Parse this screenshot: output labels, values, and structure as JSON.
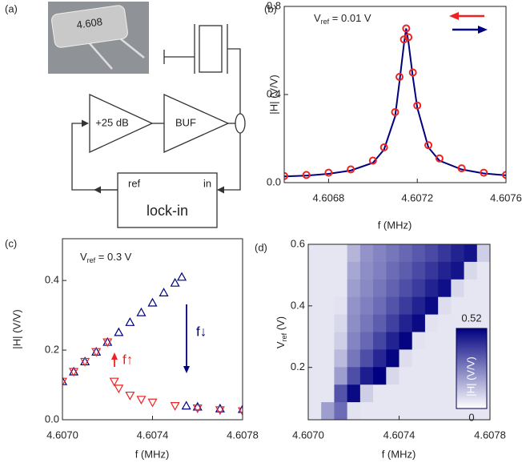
{
  "diagram": {
    "label": "(a)",
    "photo_text": "4.608",
    "amp_label": "+25 dB",
    "buffer_label": "BUF",
    "ref_label": "ref",
    "in_label": "in",
    "lockin_label": "lock-in"
  },
  "chart_data": [
    {
      "type": "line",
      "label": "(b)",
      "xlabel": "f (MHz)",
      "ylabel": "|H| (V/V)",
      "annotation": {
        "text": "V",
        "sub": "ref",
        "rest": " = 0.01 V"
      },
      "xlim": [
        4.6066,
        4.6076
      ],
      "xticks": [
        4.6068,
        4.6072,
        4.6076
      ],
      "ylim": [
        0,
        0.8
      ],
      "yticks": [
        {
          "value": 0,
          "label": "0.0"
        },
        0.4,
        0.8
      ],
      "x": [
        4.6066,
        4.6067,
        4.6068,
        4.6069,
        4.607,
        4.60705,
        4.6071,
        4.60712,
        4.60714,
        4.60715,
        4.60716,
        4.60718,
        4.6072,
        4.60725,
        4.6073,
        4.6074,
        4.6075,
        4.6076
      ],
      "series": [
        {
          "color": "#00007f",
          "style": "line",
          "legend_arrow": "right",
          "values": [
            0.028,
            0.032,
            0.04,
            0.055,
            0.09,
            0.15,
            0.3,
            0.46,
            0.63,
            0.7,
            0.64,
            0.48,
            0.34,
            0.16,
            0.1,
            0.06,
            0.042,
            0.033
          ]
        },
        {
          "color": "#ee2222",
          "style": "circle",
          "legend_arrow": "left",
          "values": [
            0.03,
            0.035,
            0.045,
            0.06,
            0.1,
            0.16,
            0.32,
            0.48,
            0.65,
            0.7,
            0.66,
            0.5,
            0.35,
            0.17,
            0.11,
            0.065,
            0.045,
            0.035
          ]
        }
      ]
    },
    {
      "type": "scatter",
      "label": "(c)",
      "xlabel": "f (MHz)",
      "ylabel": "|H| (V/V)",
      "annotation": {
        "text": "V",
        "sub": "ref",
        "rest": " = 0.3 V"
      },
      "sweep_labels": [
        {
          "text": "f↑",
          "color": "#ee2222"
        },
        {
          "text": "f↓",
          "color": "#00007f"
        }
      ],
      "xlim": [
        4.607,
        4.6078
      ],
      "xticks": [
        {
          "value": 4.607,
          "label": "4.6070"
        },
        4.6074,
        4.6078
      ],
      "ylim": [
        0,
        0.52
      ],
      "yticks": [
        {
          "value": 0,
          "label": "0.0"
        },
        0.2,
        0.4
      ],
      "series": [
        {
          "color": "#00007f",
          "style": "triangle-up",
          "x": [
            4.607,
            4.60705,
            4.6071,
            4.60715,
            4.6072,
            4.60725,
            4.6073,
            4.60735,
            4.6074,
            4.60745,
            4.6075,
            4.60753,
            4.60755,
            4.6076,
            4.6077,
            4.6078
          ],
          "values": [
            0.11,
            0.138,
            0.167,
            0.195,
            0.223,
            0.251,
            0.28,
            0.308,
            0.336,
            0.365,
            0.393,
            0.41,
            0.04,
            0.037,
            0.032,
            0.03
          ]
        },
        {
          "color": "#ee2222",
          "style": "triangle-down",
          "x": [
            4.607,
            4.60705,
            4.6071,
            4.60715,
            4.6072,
            4.60723,
            4.60725,
            4.6073,
            4.60735,
            4.6074,
            4.6075,
            4.6076,
            4.6077,
            4.6078
          ],
          "values": [
            0.11,
            0.138,
            0.167,
            0.195,
            0.223,
            0.11,
            0.09,
            0.07,
            0.058,
            0.05,
            0.04,
            0.033,
            0.028,
            0.025
          ]
        }
      ]
    },
    {
      "type": "heatmap",
      "label": "(d)",
      "xlabel": "f (MHz)",
      "ylabel": {
        "text": "V",
        "sub": "ref",
        "rest": " (V)"
      },
      "xlim": [
        4.607,
        4.6078
      ],
      "xticks": [
        {
          "value": 4.607,
          "label": "4.6070"
        },
        4.6074,
        4.6078
      ],
      "ylim": [
        0.03,
        0.6
      ],
      "yticks": [
        0.2,
        0.4,
        0.6
      ],
      "colormap": [
        "#ffffff",
        "#000080"
      ],
      "colorbar": {
        "lim": [
          0,
          0.52
        ],
        "ticks": [
          0.52,
          0
        ],
        "label": "|H| (V/V)"
      },
      "z": [
        [
          0.05,
          0.05,
          0.05,
          0.15,
          0.22,
          0.25,
          0.28,
          0.31,
          0.34,
          0.37,
          0.41,
          0.45,
          0.48,
          0.1
        ],
        [
          0.05,
          0.05,
          0.05,
          0.18,
          0.23,
          0.26,
          0.3,
          0.33,
          0.37,
          0.41,
          0.45,
          0.48,
          0.08,
          0.05
        ],
        [
          0.05,
          0.05,
          0.05,
          0.2,
          0.24,
          0.28,
          0.32,
          0.36,
          0.4,
          0.45,
          0.49,
          0.08,
          0.05,
          0.05
        ],
        [
          0.05,
          0.05,
          0.06,
          0.22,
          0.26,
          0.3,
          0.35,
          0.4,
          0.45,
          0.5,
          0.07,
          0.05,
          0.05,
          0.05
        ],
        [
          0.05,
          0.05,
          0.08,
          0.23,
          0.28,
          0.33,
          0.39,
          0.45,
          0.5,
          0.06,
          0.05,
          0.05,
          0.05,
          0.05
        ],
        [
          0.05,
          0.05,
          0.1,
          0.25,
          0.31,
          0.38,
          0.45,
          0.51,
          0.06,
          0.05,
          0.05,
          0.05,
          0.05,
          0.05
        ],
        [
          0.05,
          0.05,
          0.14,
          0.28,
          0.36,
          0.44,
          0.51,
          0.07,
          0.05,
          0.05,
          0.05,
          0.05,
          0.05,
          0.05
        ],
        [
          0.05,
          0.05,
          0.2,
          0.36,
          0.46,
          0.52,
          0.08,
          0.05,
          0.05,
          0.05,
          0.05,
          0.05,
          0.05,
          0.05
        ],
        [
          0.05,
          0.05,
          0.35,
          0.5,
          0.1,
          0.05,
          0.05,
          0.05,
          0.05,
          0.05,
          0.05,
          0.05,
          0.05,
          0.05
        ],
        [
          0.05,
          0.2,
          0.3,
          0.06,
          0.05,
          0.05,
          0.05,
          0.05,
          0.05,
          0.05,
          0.05,
          0.05,
          0.05,
          0.05
        ]
      ]
    }
  ]
}
